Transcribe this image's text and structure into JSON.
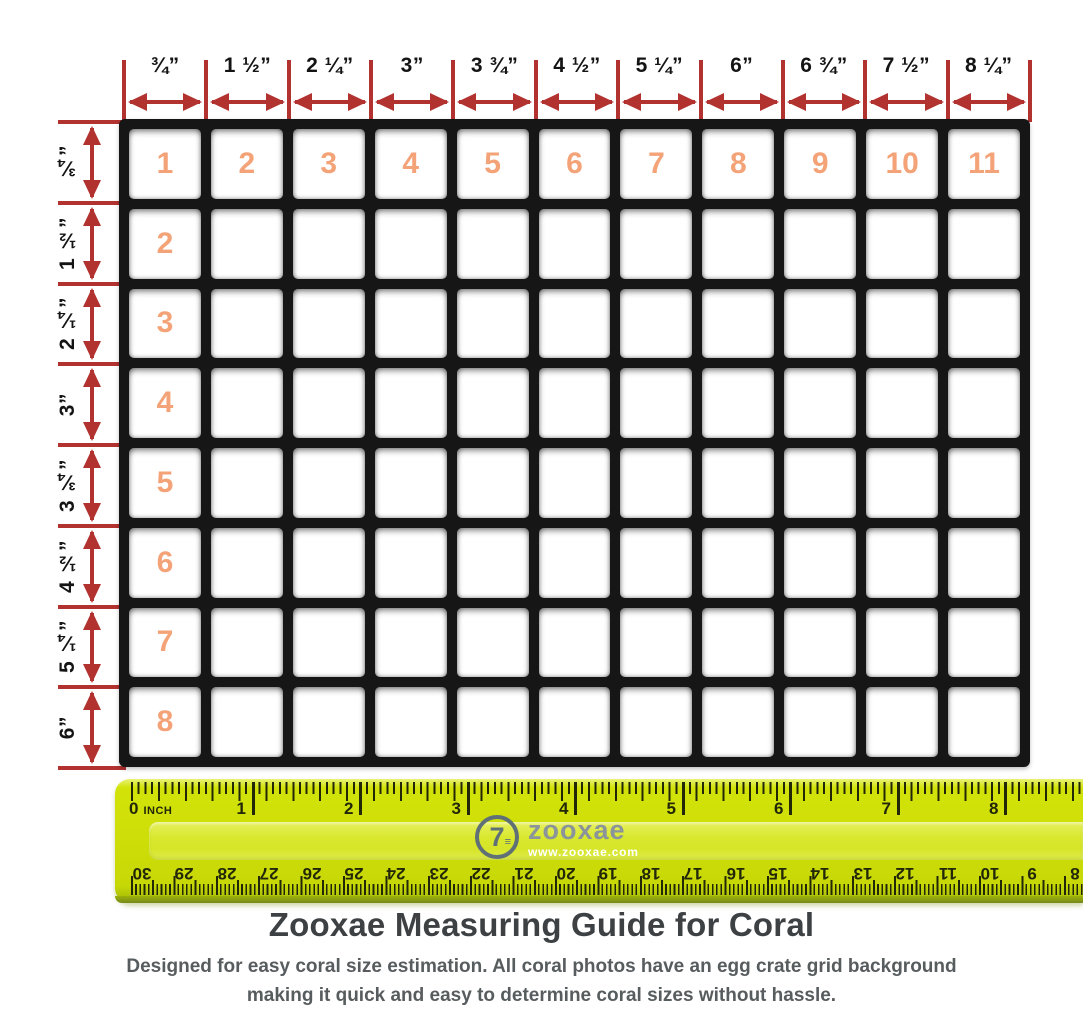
{
  "colors": {
    "dimension_red": "#b23230",
    "grid_number_orange": "#f3a377",
    "grid_black": "#161616",
    "ruler_yellow": "#cede08",
    "ruler_tick_dark": "#222708",
    "logo_gray": "#8a949a",
    "title_charcoal": "#3d4144",
    "subtitle_gray": "#575c5f"
  },
  "top_scale": {
    "labels": [
      "¾”",
      "1 ½”",
      "2 ¼”",
      "3”",
      "3 ¾”",
      "4 ½”",
      "5 ¼”",
      "6”",
      "6 ¾”",
      "7 ½”",
      "8 ¼”"
    ]
  },
  "left_scale": {
    "labels": [
      "¾”",
      "1 ½”",
      "2 ¼”",
      "3”",
      "3 ¾”",
      "4 ½”",
      "5 ¼”",
      "6”"
    ]
  },
  "grid": {
    "rows": 8,
    "cols": 11,
    "first_row_numbers": [
      "1",
      "2",
      "3",
      "4",
      "5",
      "6",
      "7",
      "8",
      "9",
      "10",
      "11"
    ],
    "first_col_numbers": [
      "2",
      "3",
      "4",
      "5",
      "6",
      "7",
      "8"
    ]
  },
  "ruler": {
    "zero_number": "0",
    "unit_label": "INCH",
    "inch_numbers": [
      "1",
      "2",
      "3",
      "4",
      "5",
      "6",
      "7",
      "8"
    ],
    "cm_numbers": [
      "30",
      "29",
      "28",
      "27",
      "26",
      "25",
      "24",
      "23",
      "22",
      "21",
      "20",
      "19",
      "18",
      "17",
      "16",
      "15",
      "14",
      "13",
      "12",
      "11",
      "10",
      "9",
      "8"
    ],
    "logo_glyph": "7",
    "brand": "zooxae",
    "website": "www.zooxae.com"
  },
  "footer": {
    "title": "Zooxae Measuring Guide for Coral",
    "subtitle_line1": "Designed for easy coral size estimation. All coral photos have an egg crate grid background",
    "subtitle_line2": "making it quick and easy to determine coral sizes without hassle."
  }
}
